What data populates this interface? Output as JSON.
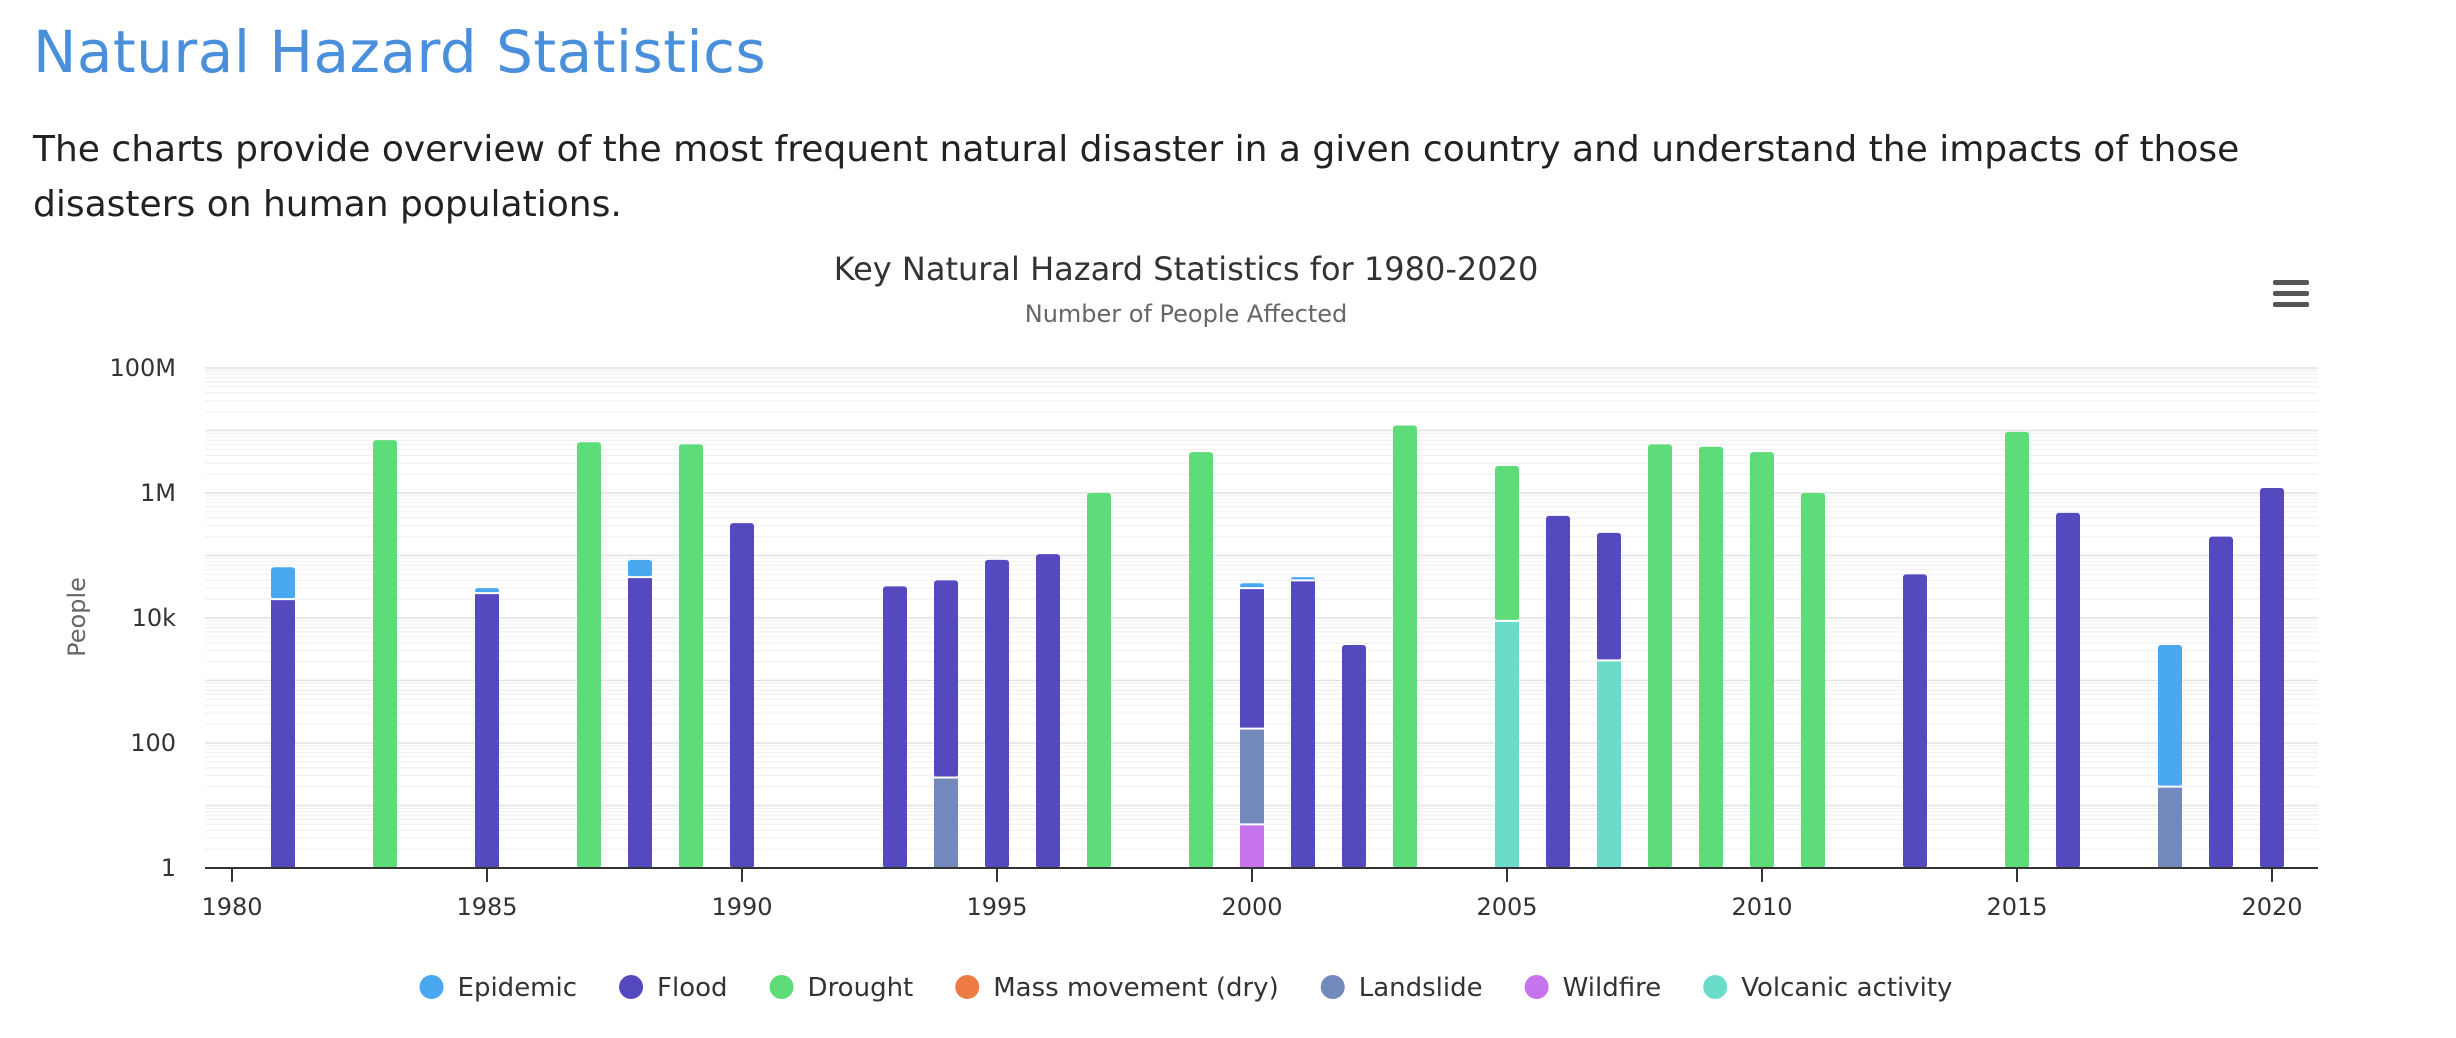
{
  "page": {
    "title": "Natural Hazard Statistics",
    "intro": "The charts provide overview of the most frequent natural disaster in a given country and understand the impacts of those disasters on human populations."
  },
  "chart_data": {
    "type": "bar",
    "stacked": true,
    "title": "Key Natural Hazard Statistics for 1980-2020",
    "subtitle": "Number of People Affected",
    "ylabel": "People",
    "xlabel": "",
    "yscale": "log",
    "ylim": [
      1,
      100000000
    ],
    "xlim": [
      1980,
      2020
    ],
    "y_ticks": [
      {
        "value": 1,
        "label": "1"
      },
      {
        "value": 100,
        "label": "100"
      },
      {
        "value": 10000,
        "label": "10k"
      },
      {
        "value": 1000000,
        "label": "1M"
      },
      {
        "value": 100000000,
        "label": "100M"
      }
    ],
    "x_ticks": [
      "1980",
      "1985",
      "1990",
      "1995",
      "2000",
      "2005",
      "2010",
      "2015",
      "2020"
    ],
    "grid": true,
    "legend_position": "bottom-center",
    "colors": {
      "Epidemic": "#4aa8f0",
      "Flood": "#5549c0",
      "Drought": "#5fdc7a",
      "Mass movement (dry)": "#ee7b42",
      "Landslide": "#7389bc",
      "Wildfire": "#c673ee",
      "Volcanic activity": "#6cdcca"
    },
    "legend": [
      "Epidemic",
      "Flood",
      "Drought",
      "Mass movement (dry)",
      "Landslide",
      "Wildfire",
      "Volcanic activity"
    ],
    "bars": [
      {
        "year": 1981,
        "segments": [
          {
            "series": "Flood",
            "from": 1,
            "to": 20000
          },
          {
            "series": "Epidemic",
            "from": 20000,
            "to": 65000
          }
        ]
      },
      {
        "year": 1983,
        "segments": [
          {
            "series": "Drought",
            "from": 1,
            "to": 7000000
          }
        ]
      },
      {
        "year": 1985,
        "segments": [
          {
            "series": "Flood",
            "from": 1,
            "to": 25000
          },
          {
            "series": "Epidemic",
            "from": 25000,
            "to": 30000
          }
        ]
      },
      {
        "year": 1987,
        "segments": [
          {
            "series": "Drought",
            "from": 1,
            "to": 6500000
          }
        ]
      },
      {
        "year": 1988,
        "segments": [
          {
            "series": "Flood",
            "from": 1,
            "to": 45000
          },
          {
            "series": "Epidemic",
            "from": 45000,
            "to": 85000
          }
        ]
      },
      {
        "year": 1989,
        "segments": [
          {
            "series": "Drought",
            "from": 1,
            "to": 6000000
          }
        ]
      },
      {
        "year": 1990,
        "segments": [
          {
            "series": "Flood",
            "from": 1,
            "to": 330000
          }
        ]
      },
      {
        "year": 1993,
        "segments": [
          {
            "series": "Flood",
            "from": 1,
            "to": 32000
          }
        ]
      },
      {
        "year": 1994,
        "segments": [
          {
            "series": "Landslide",
            "from": 1,
            "to": 28
          },
          {
            "series": "Flood",
            "from": 28,
            "to": 40000
          }
        ]
      },
      {
        "year": 1995,
        "segments": [
          {
            "series": "Flood",
            "from": 1,
            "to": 85000
          }
        ]
      },
      {
        "year": 1996,
        "segments": [
          {
            "series": "Flood",
            "from": 1,
            "to": 105000
          }
        ]
      },
      {
        "year": 1997,
        "segments": [
          {
            "series": "Drought",
            "from": 1,
            "to": 1000000
          }
        ]
      },
      {
        "year": 1999,
        "segments": [
          {
            "series": "Drought",
            "from": 1,
            "to": 4500000
          }
        ]
      },
      {
        "year": 2000,
        "segments": [
          {
            "series": "Wildfire",
            "from": 1,
            "to": 5
          },
          {
            "series": "Landslide",
            "from": 5,
            "to": 170
          },
          {
            "series": "Flood",
            "from": 170,
            "to": 30000
          },
          {
            "series": "Epidemic",
            "from": 30000,
            "to": 36000
          }
        ]
      },
      {
        "year": 2001,
        "segments": [
          {
            "series": "Flood",
            "from": 1,
            "to": 40000
          },
          {
            "series": "Epidemic",
            "from": 40000,
            "to": 45000
          }
        ]
      },
      {
        "year": 2002,
        "segments": [
          {
            "series": "Flood",
            "from": 1,
            "to": 3700
          }
        ]
      },
      {
        "year": 2003,
        "segments": [
          {
            "series": "Drought",
            "from": 1,
            "to": 12000000
          }
        ]
      },
      {
        "year": 2005,
        "segments": [
          {
            "series": "Volcanic activity",
            "from": 1,
            "to": 9000
          },
          {
            "series": "Drought",
            "from": 9000,
            "to": 2700000
          }
        ]
      },
      {
        "year": 2006,
        "segments": [
          {
            "series": "Flood",
            "from": 1,
            "to": 430000
          }
        ]
      },
      {
        "year": 2007,
        "segments": [
          {
            "series": "Volcanic activity",
            "from": 1,
            "to": 2100
          },
          {
            "series": "Flood",
            "from": 2100,
            "to": 230000
          }
        ]
      },
      {
        "year": 2008,
        "segments": [
          {
            "series": "Drought",
            "from": 1,
            "to": 6000000
          }
        ]
      },
      {
        "year": 2009,
        "segments": [
          {
            "series": "Drought",
            "from": 1,
            "to": 5500000
          }
        ]
      },
      {
        "year": 2010,
        "segments": [
          {
            "series": "Drought",
            "from": 1,
            "to": 4500000
          }
        ]
      },
      {
        "year": 2011,
        "segments": [
          {
            "series": "Drought",
            "from": 1,
            "to": 1000000
          }
        ]
      },
      {
        "year": 2013,
        "segments": [
          {
            "series": "Flood",
            "from": 1,
            "to": 50000
          }
        ]
      },
      {
        "year": 2015,
        "segments": [
          {
            "series": "Drought",
            "from": 1,
            "to": 9500000
          }
        ]
      },
      {
        "year": 2016,
        "segments": [
          {
            "series": "Flood",
            "from": 1,
            "to": 480000
          }
        ]
      },
      {
        "year": 2018,
        "segments": [
          {
            "series": "Landslide",
            "from": 1,
            "to": 20
          },
          {
            "series": "Epidemic",
            "from": 20,
            "to": 3700
          }
        ]
      },
      {
        "year": 2019,
        "segments": [
          {
            "series": "Flood",
            "from": 1,
            "to": 200000
          }
        ]
      },
      {
        "year": 2020,
        "segments": [
          {
            "series": "Flood",
            "from": 1,
            "to": 1200000
          }
        ]
      }
    ]
  }
}
